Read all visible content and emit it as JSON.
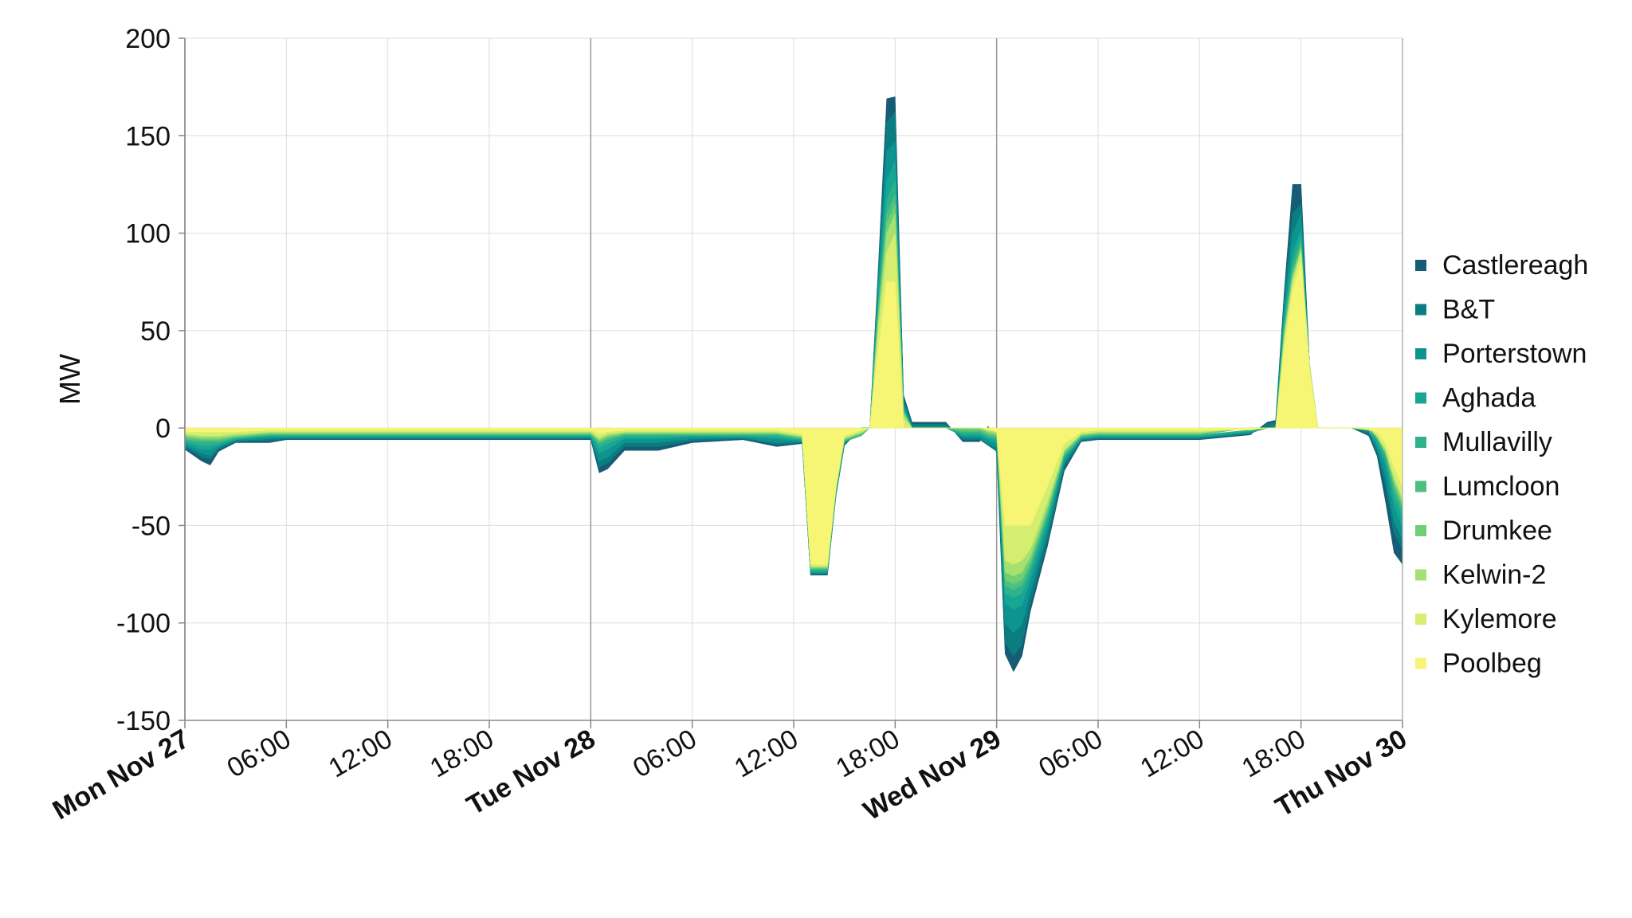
{
  "chart_data": {
    "type": "area",
    "stacked": true,
    "ylabel": "MW",
    "xlabel": "",
    "ylim": [
      -150,
      200
    ],
    "yticks": [
      -150,
      -100,
      -50,
      0,
      50,
      100,
      150,
      200
    ],
    "xlim": [
      0,
      72
    ],
    "xticks": [
      {
        "x": 0,
        "label": "Mon Nov 27",
        "major": true
      },
      {
        "x": 6,
        "label": "06:00",
        "major": false
      },
      {
        "x": 12,
        "label": "12:00",
        "major": false
      },
      {
        "x": 18,
        "label": "18:00",
        "major": false
      },
      {
        "x": 24,
        "label": "Tue Nov 28",
        "major": true
      },
      {
        "x": 30,
        "label": "06:00",
        "major": false
      },
      {
        "x": 36,
        "label": "12:00",
        "major": false
      },
      {
        "x": 42,
        "label": "18:00",
        "major": false
      },
      {
        "x": 48,
        "label": "Wed Nov 29",
        "major": true
      },
      {
        "x": 54,
        "label": "06:00",
        "major": false
      },
      {
        "x": 60,
        "label": "12:00",
        "major": false
      },
      {
        "x": 66,
        "label": "18:00",
        "major": false
      },
      {
        "x": 72,
        "label": "Thu Nov 30",
        "major": true
      }
    ],
    "grid": true,
    "legend_position": "right",
    "x_hours": [
      0,
      1,
      1.5,
      2,
      3,
      5,
      6,
      12,
      18,
      23,
      24,
      24.5,
      25,
      26,
      28,
      30,
      33,
      35,
      36.5,
      37,
      38,
      38.5,
      39,
      40,
      40.5,
      41,
      41.5,
      42,
      42.5,
      43,
      44,
      45,
      46,
      47,
      47.5,
      48,
      48.5,
      49,
      49.5,
      50,
      51,
      52,
      53,
      54,
      60,
      63,
      64,
      64.5,
      65,
      65.5,
      66,
      66.5,
      67,
      68,
      69,
      70,
      70.5,
      71,
      71.5,
      72
    ],
    "series": [
      {
        "name": "Poolbeg",
        "color": "#f6f574",
        "values": [
          -2,
          -2,
          -2,
          -2,
          -2,
          -1,
          -1,
          -1,
          -1,
          -1,
          -1,
          -3,
          -2,
          -1,
          -1,
          -1,
          -1,
          -1,
          -3,
          -70,
          -70,
          -30,
          -4,
          -1,
          0,
          40,
          75,
          75,
          0,
          0,
          0,
          0,
          0,
          0,
          -1,
          -2,
          -50,
          -50,
          -50,
          -50,
          -30,
          -8,
          -2,
          -1,
          -1,
          -1,
          0,
          0,
          40,
          70,
          85,
          30,
          0,
          0,
          0,
          -1,
          -2,
          -8,
          -20,
          -30
        ]
      },
      {
        "name": "Kylemore",
        "color": "#d6ee70",
        "values": [
          -1,
          -2,
          -2,
          -2,
          -1,
          -1,
          -1,
          -1,
          -1,
          -1,
          -1,
          -2,
          -1,
          -1,
          -1,
          -1,
          -1,
          -1,
          -1,
          -1,
          -1,
          -1,
          -1,
          -1,
          0,
          10,
          15,
          25,
          5,
          0,
          0,
          0,
          0,
          0,
          0,
          0,
          -18,
          -20,
          -18,
          -12,
          -8,
          -3,
          -1,
          -1,
          -1,
          0,
          0,
          0,
          5,
          5,
          5,
          2,
          0,
          0,
          0,
          0,
          -2,
          -3,
          -5,
          -6
        ]
      },
      {
        "name": "Kelwin-2",
        "color": "#a6e070",
        "values": [
          -1,
          -1,
          -1,
          -1,
          -1,
          -0.5,
          -0.5,
          -0.5,
          -0.5,
          -0.5,
          -0.5,
          -1,
          -1,
          -0.5,
          -0.5,
          -0.5,
          -0.5,
          -0.5,
          -0.5,
          -0.5,
          -0.5,
          -0.5,
          -0.5,
          -0.5,
          0,
          5,
          10,
          10,
          2,
          0,
          0,
          0,
          0,
          0,
          -1,
          -1,
          -6,
          -6,
          -6,
          -4,
          -3,
          -1,
          -0.5,
          -0.5,
          -0.5,
          0,
          0,
          0,
          2,
          2,
          2,
          1,
          0,
          0,
          0,
          0,
          -0.5,
          -1,
          -2,
          -2
        ]
      },
      {
        "name": "Drumkee",
        "color": "#6fcf72",
        "values": [
          -1,
          -1,
          -1,
          -1,
          -0.5,
          -0.5,
          -0.5,
          -0.5,
          -0.5,
          -0.5,
          -0.5,
          -1,
          -1,
          -0.5,
          -0.5,
          -0.5,
          -0.5,
          -0.5,
          -0.5,
          -0.5,
          -0.5,
          -0.5,
          -0.5,
          -0.5,
          0,
          3,
          5,
          5,
          1,
          0,
          0,
          0,
          -1,
          -1,
          -1,
          -1,
          -4,
          -4,
          -4,
          -3,
          -2,
          -1,
          -0.5,
          -0.5,
          -0.5,
          0,
          0,
          0,
          2,
          2,
          1,
          0,
          0,
          0,
          0,
          0,
          -0.5,
          -1,
          -2,
          -2
        ]
      },
      {
        "name": "Lumcloon",
        "color": "#4fbf80",
        "values": [
          -1,
          -1,
          -1,
          -1,
          -0.5,
          -0.5,
          -0.5,
          -0.5,
          -0.5,
          -0.5,
          -0.5,
          -1,
          -1,
          -0.5,
          -0.5,
          -0.5,
          -0.5,
          -0.5,
          -0.5,
          -0.5,
          -0.5,
          -0.5,
          -0.5,
          -0.5,
          0,
          3,
          5,
          5,
          1,
          0,
          0,
          0,
          -1,
          -1,
          -1,
          -1,
          -3,
          -3,
          -3,
          -2,
          -2,
          -1,
          -0.5,
          -0.5,
          -0.5,
          0,
          0,
          0,
          2,
          2,
          2,
          0,
          0,
          0,
          0,
          0,
          -0.5,
          -1,
          -2,
          -2
        ]
      },
      {
        "name": "Mullavilly",
        "color": "#2db28a",
        "values": [
          -1,
          -2,
          -2,
          -1,
          -0.5,
          -0.5,
          -0.5,
          -0.5,
          -0.5,
          -0.5,
          -0.5,
          -2,
          -2,
          -1,
          -1,
          -0.5,
          -0.5,
          -1,
          -0.5,
          -0.5,
          -0.5,
          -0.5,
          -0.5,
          -0.5,
          0,
          4,
          7,
          7,
          1,
          0,
          0,
          0,
          -1,
          -1,
          -1,
          -1,
          -4,
          -4,
          -4,
          -3,
          -2,
          -1,
          -0.5,
          -0.5,
          -0.5,
          -0.5,
          0,
          0,
          3,
          4,
          3,
          0,
          0,
          0,
          0,
          0,
          -1,
          -2,
          -4,
          -4
        ]
      },
      {
        "name": "Aghada",
        "color": "#17a693",
        "values": [
          -1,
          -2,
          -2,
          -1,
          -0.5,
          -0.5,
          -0.5,
          -0.5,
          -0.5,
          -0.5,
          -0.5,
          -3,
          -3,
          -1,
          -1,
          -0.5,
          -0.5,
          -1,
          -0.5,
          -1,
          -1,
          -0.5,
          -0.5,
          0,
          0,
          5,
          10,
          10,
          1,
          0,
          0,
          0,
          -1,
          -1,
          -1,
          -2,
          -5,
          -6,
          -6,
          -4,
          -3,
          -1,
          -0.5,
          -0.5,
          -0.5,
          -0.5,
          0,
          0,
          3,
          5,
          4,
          0,
          0,
          0,
          0,
          0,
          -2,
          -3,
          -5,
          -5
        ]
      },
      {
        "name": "Porterstown",
        "color": "#0e9490",
        "values": [
          -1,
          -2,
          -3,
          -1,
          -0.5,
          -1,
          -0.5,
          -0.5,
          -0.5,
          -0.5,
          -0.5,
          -4,
          -4,
          -2,
          -2,
          -1,
          -0.5,
          -2,
          -0.5,
          -0.5,
          -0.5,
          -0.5,
          -0.5,
          0,
          0,
          5,
          15,
          10,
          2,
          1,
          1,
          1,
          -1,
          -1,
          -2,
          -2,
          -10,
          -12,
          -10,
          -6,
          -4,
          -2,
          -0.5,
          -0.5,
          -0.5,
          -0.5,
          0,
          1,
          5,
          10,
          8,
          0,
          0,
          0,
          0,
          -1,
          -2,
          -6,
          -8,
          -6
        ]
      },
      {
        "name": "B&T",
        "color": "#0a7d80",
        "values": [
          -1,
          -2,
          -2,
          -1,
          -0.5,
          -1,
          -0.5,
          -0.5,
          -0.5,
          -0.5,
          -0.5,
          -3,
          -3,
          -2,
          -2,
          -1,
          -0.5,
          -1,
          -0.5,
          -0.5,
          -0.5,
          -0.5,
          -0.5,
          0,
          0,
          4,
          15,
          15,
          2,
          1,
          1,
          1,
          -1,
          -1,
          -1,
          -2,
          -10,
          -12,
          -10,
          -6,
          -4,
          -2,
          -0.5,
          -0.5,
          -0.5,
          -0.5,
          2,
          2,
          5,
          10,
          5,
          0,
          0,
          0,
          0,
          -1,
          -2,
          -5,
          -6,
          -5
        ]
      },
      {
        "name": "Castlereagh",
        "color": "#165c74",
        "values": [
          -1,
          -2,
          -3,
          -1,
          -0.5,
          -1,
          -0.5,
          -0.5,
          -0.5,
          -0.5,
          -0.5,
          -3,
          -3,
          -2,
          -2,
          -1,
          -0.5,
          -1,
          -0.5,
          -0.5,
          -0.5,
          -0.5,
          -0.5,
          0,
          0,
          3,
          12,
          8,
          2,
          1,
          1,
          1,
          -1,
          -1,
          1,
          -1,
          -6,
          -8,
          -6,
          -4,
          -3,
          -2,
          -0.5,
          -0.5,
          -0.5,
          -0.5,
          1,
          1,
          2,
          15,
          10,
          0,
          0,
          0,
          0,
          -1,
          -2,
          -8,
          -10,
          -8
        ]
      }
    ]
  }
}
